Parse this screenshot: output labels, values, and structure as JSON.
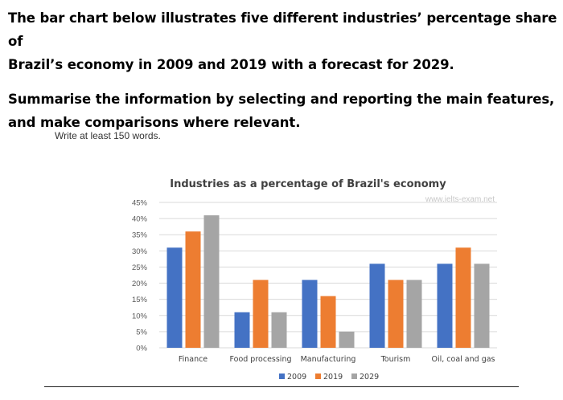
{
  "prompt": {
    "line1": "The bar chart below illustrates five different industries’ percentage share of",
    "line2": "Brazil’s economy in 2009 and 2019 with a forecast for 2029.",
    "line3": "Summarise the information by selecting and reporting the main features,",
    "line4": "and make comparisons where relevant."
  },
  "instruction": "Write at least 150 words.",
  "watermark": "www.ielts-exam.net",
  "colors": {
    "s2009": "#4472C4",
    "s2019": "#ED7D31",
    "s2029": "#A5A5A5"
  },
  "chart_data": {
    "type": "bar",
    "title": "Industries as a percentage of Brazil's economy",
    "categories": [
      "Finance",
      "Food processing",
      "Manufacturing",
      "Tourism",
      "Oil, coal and gas"
    ],
    "series": [
      {
        "name": "2009",
        "values": [
          31,
          11,
          21,
          26,
          26
        ]
      },
      {
        "name": "2019",
        "values": [
          36,
          21,
          16,
          21,
          31
        ]
      },
      {
        "name": "2029",
        "values": [
          41,
          11,
          5,
          21,
          26
        ]
      }
    ],
    "ylim": [
      0,
      45
    ],
    "yticks": [
      "0%",
      "5%",
      "10%",
      "15%",
      "20%",
      "25%",
      "30%",
      "35%",
      "40%",
      "45%"
    ],
    "grid": true,
    "legend": "bottom"
  }
}
